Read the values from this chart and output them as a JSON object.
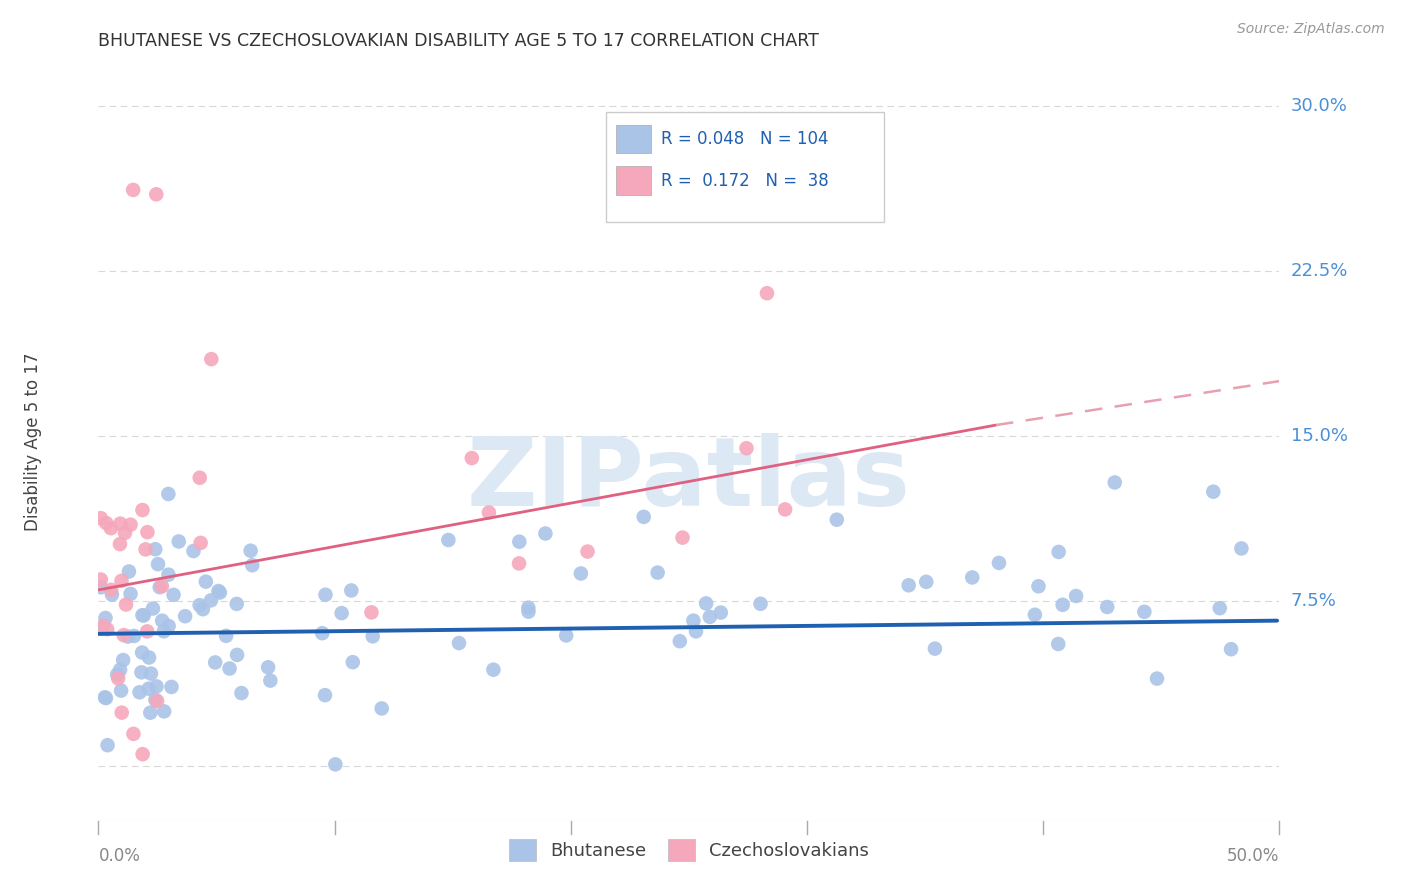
{
  "title": "BHUTANESE VS CZECHOSLOVAKIAN DISABILITY AGE 5 TO 17 CORRELATION CHART",
  "source": "Source: ZipAtlas.com",
  "ylabel": "Disability Age 5 to 17",
  "ytick_vals": [
    0.0,
    0.075,
    0.15,
    0.225,
    0.3
  ],
  "ytick_labels": [
    "",
    "7.5%",
    "15.0%",
    "22.5%",
    "30.0%"
  ],
  "xlim": [
    0.0,
    0.5
  ],
  "ylim": [
    -0.025,
    0.32
  ],
  "legend_blue_r": "0.048",
  "legend_blue_n": "104",
  "legend_pink_r": "0.172",
  "legend_pink_n": "38",
  "legend_labels": [
    "Bhutanese",
    "Czechoslovakians"
  ],
  "blue_color": "#aac4e8",
  "pink_color": "#f5a8bc",
  "trendline_blue_color": "#2060b0",
  "trendline_pink_solid_color": "#e06080",
  "trendline_pink_dash_color": "#e8a0b0",
  "background_color": "#ffffff",
  "grid_color": "#d8d8d8",
  "ytick_color": "#4a90d9",
  "title_color": "#333333",
  "watermark_color": "#dde8f5",
  "blue_trend_y0": 0.06,
  "blue_trend_y1": 0.066,
  "pink_trend_y0": 0.08,
  "pink_trend_y1": 0.155,
  "pink_trend_solid_x1": 0.38,
  "pink_trend_dash_x0": 0.38,
  "pink_trend_dash_y0": 0.155,
  "pink_trend_dash_x1": 0.5,
  "pink_trend_dash_y1": 0.175
}
